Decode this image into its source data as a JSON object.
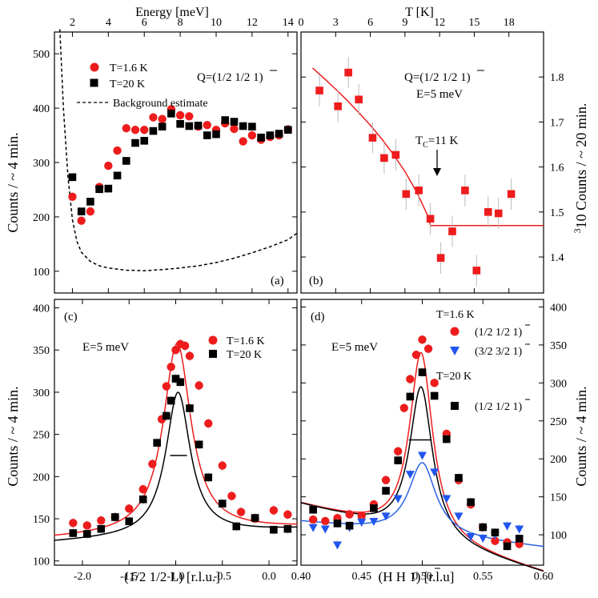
{
  "chart_data": [
    {
      "id": "a",
      "type": "scatter",
      "panel_label": "(a)",
      "xlabel": "Energy [meV]",
      "ylabel": "Counts / ~ 4 min.",
      "xlim": [
        1.0,
        14.5
      ],
      "ylim": [
        60,
        540
      ],
      "xticks": [
        2,
        4,
        6,
        8,
        10,
        12,
        14
      ],
      "yticks": [
        100,
        200,
        300,
        400,
        500
      ],
      "annotation": "Q=(1/2 1/2 1)",
      "legend": [
        "T=1.6 K",
        "T=20 K",
        "Background estimate"
      ],
      "series": [
        {
          "name": "T=1.6 K",
          "color": "#ee1c1c",
          "marker": "circle",
          "x": [
            2.0,
            2.5,
            3.0,
            3.5,
            4.0,
            4.5,
            5.0,
            5.5,
            6.0,
            6.5,
            7.0,
            7.5,
            8.0,
            8.5,
            9.0,
            9.5,
            10.0,
            10.5,
            11.0,
            11.5,
            12.0,
            12.5,
            13.0,
            13.5,
            14.0
          ],
          "y": [
            237,
            193,
            210,
            255,
            294,
            322,
            363,
            360,
            360,
            383,
            380,
            398,
            387,
            385,
            366,
            369,
            360,
            372,
            362,
            339,
            350,
            342,
            347,
            350,
            361
          ]
        },
        {
          "name": "T=20 K",
          "color": "#000000",
          "marker": "square",
          "x": [
            2.0,
            2.5,
            3.0,
            3.5,
            4.0,
            4.5,
            5.0,
            5.5,
            6.0,
            6.5,
            7.0,
            7.5,
            8.0,
            8.5,
            9.0,
            9.5,
            10.0,
            10.5,
            11.0,
            11.5,
            12.0,
            12.5,
            13.0,
            13.5,
            14.0
          ],
          "y": [
            273,
            210,
            228,
            251,
            252,
            276,
            303,
            336,
            340,
            358,
            366,
            390,
            371,
            367,
            368,
            350,
            352,
            378,
            375,
            367,
            366,
            346,
            350,
            353,
            360
          ]
        },
        {
          "name": "Background estimate",
          "color": "#000000",
          "style": "dashed",
          "x": [
            1.3,
            1.5,
            1.75,
            2.0,
            2.25,
            2.5,
            3.0,
            3.5,
            4.0,
            5.0,
            6.0,
            7.0,
            8.0,
            9.0,
            10.0,
            11.0,
            12.0,
            13.0,
            14.0,
            14.5
          ],
          "y": [
            545,
            400,
            275,
            195,
            155,
            135,
            118,
            110,
            106,
            102,
            101,
            103,
            106,
            110,
            116,
            124,
            134,
            145,
            158,
            170
          ]
        }
      ]
    },
    {
      "id": "b",
      "type": "scatter",
      "panel_label": "(b)",
      "xlabel": "T [K]",
      "ylabel": "10 Counts / ~ 20 min.",
      "ylabel_sup": "3",
      "xlim": [
        0,
        21
      ],
      "ylim": [
        1.32,
        1.9
      ],
      "xticks": [
        0,
        3,
        6,
        9,
        12,
        15,
        18
      ],
      "yticks": [
        1.4,
        1.5,
        1.6,
        1.7,
        1.8
      ],
      "ytick_labels": [
        "1.4",
        "1.5",
        "1.6",
        "1.7",
        "1.8"
      ],
      "annotation": "Q=(1/2 1/2 1)",
      "annotation2": "E=5 meV",
      "tc_label": "T",
      "tc_sub": "C",
      "tc_value": "=11 K",
      "series": [
        {
          "name": "data",
          "color": "#ee1c1c",
          "marker": "square",
          "x": [
            1.6,
            3.2,
            4.1,
            5.0,
            6.2,
            7.2,
            8.2,
            9.1,
            10.2,
            11.2,
            12.1,
            13.1,
            14.2,
            15.2,
            16.2,
            17.1,
            18.2
          ],
          "y": [
            1.77,
            1.735,
            1.81,
            1.75,
            1.665,
            1.62,
            1.627,
            1.54,
            1.548,
            1.485,
            1.398,
            1.457,
            1.548,
            1.37,
            1.5,
            1.497,
            1.54
          ],
          "err": [
            0.035,
            0.035,
            0.035,
            0.035,
            0.035,
            0.035,
            0.035,
            0.035,
            0.035,
            0.035,
            0.035,
            0.035,
            0.035,
            0.035,
            0.035,
            0.035,
            0.035
          ]
        },
        {
          "name": "fit",
          "color": "#ee1c1c",
          "style": "line",
          "x": [
            1.0,
            2.0,
            3.0,
            4.0,
            5.0,
            6.0,
            7.0,
            8.0,
            9.0,
            10.0,
            10.5,
            11.0,
            11.2,
            12.0,
            14.0,
            16.0,
            18.0,
            21.0
          ],
          "y": [
            1.82,
            1.797,
            1.773,
            1.748,
            1.721,
            1.693,
            1.662,
            1.628,
            1.59,
            1.545,
            1.518,
            1.49,
            1.47,
            1.47,
            1.47,
            1.47,
            1.47,
            1.47
          ]
        }
      ]
    },
    {
      "id": "c",
      "type": "scatter",
      "panel_label": "(c)",
      "xlabel": "(1/2 1/2 L) [r.l.u.]",
      "ylabel": "Counts / ~ 4 min.",
      "xlim": [
        -2.3,
        0.3
      ],
      "ylim": [
        95,
        410
      ],
      "xticks": [
        -2.0,
        -1.5,
        -1.0,
        -0.5,
        0.0
      ],
      "xtick_labels": [
        "-2.0",
        "-1.5",
        "-1.0",
        "-0.5",
        "0.0"
      ],
      "yticks": [
        100,
        150,
        200,
        250,
        300,
        350,
        400
      ],
      "annotation": "E=5 meV",
      "legend": [
        "T=1.6 K",
        "T=20 K"
      ],
      "resolution_bar": {
        "x": [
          -1.06,
          -0.88
        ],
        "y": 225
      },
      "series": [
        {
          "name": "T=1.6 K",
          "color": "#ee1c1c",
          "marker": "circle",
          "x": [
            -2.1,
            -1.95,
            -1.8,
            -1.65,
            -1.5,
            -1.35,
            -1.25,
            -1.15,
            -1.1,
            -1.05,
            -1.0,
            -0.95,
            -0.9,
            -0.85,
            -0.75,
            -0.65,
            -0.5,
            -0.4,
            -0.3,
            -0.15,
            0.05,
            0.2
          ],
          "y": [
            145,
            142,
            148,
            152,
            162,
            185,
            215,
            268,
            307,
            330,
            350,
            357,
            355,
            343,
            308,
            263,
            213,
            177,
            158,
            150,
            160,
            155
          ]
        },
        {
          "name": "T=20 K",
          "color": "#000000",
          "marker": "square",
          "x": [
            -2.1,
            -1.95,
            -1.8,
            -1.65,
            -1.5,
            -1.35,
            -1.2,
            -1.1,
            -1.05,
            -1.0,
            -0.95,
            -0.85,
            -0.75,
            -0.65,
            -0.5,
            -0.35,
            -0.15,
            0.05,
            0.2
          ],
          "y": [
            133,
            132,
            138,
            152,
            147,
            173,
            240,
            272,
            290,
            316,
            312,
            281,
            238,
            199,
            168,
            141,
            151,
            137,
            138
          ]
        },
        {
          "name": "fit 1.6 K",
          "color": "#ee1c1c",
          "style": "line",
          "fit": "lorentz",
          "x0": -0.985,
          "amp": 225,
          "hwhm": 0.18,
          "base": 133,
          "slope": 5
        },
        {
          "name": "fit 20 K",
          "color": "#000000",
          "style": "line",
          "fit": "lorentz",
          "x0": -0.975,
          "amp": 170,
          "hwhm": 0.16,
          "base": 130,
          "slope": 6
        }
      ]
    },
    {
      "id": "d",
      "type": "scatter",
      "panel_label": "(d)",
      "xlabel": "(H H 1) [r.l.u]",
      "ylabel": "Counts / ~ 4 min.",
      "xlim": [
        0.4,
        0.6
      ],
      "ylim": [
        60,
        410
      ],
      "xticks": [
        0.4,
        0.45,
        0.5,
        0.55,
        0.6
      ],
      "xtick_labels": [
        "0.40",
        "0.45",
        "0.50",
        "0.55",
        "0.60"
      ],
      "yticks": [
        100,
        150,
        200,
        250,
        300,
        350,
        400
      ],
      "annotation": "E=5 meV",
      "legend_header_1": "T=1.6 K",
      "legend_header_2": "T=20 K",
      "legend": [
        "(1/2 1/2 1)",
        "(3/2 3/2 1)",
        "(1/2 1/2 1)"
      ],
      "resolution_bar": {
        "x": [
          0.489,
          0.507
        ],
        "y": 225
      },
      "series": [
        {
          "name": "T=1.6 K (1/2 1/2 1)",
          "color": "#ee1c1c",
          "marker": "circle",
          "x": [
            0.41,
            0.42,
            0.43,
            0.44,
            0.45,
            0.46,
            0.47,
            0.48,
            0.485,
            0.49,
            0.495,
            0.5,
            0.505,
            0.51,
            0.52,
            0.53,
            0.54,
            0.55,
            0.56,
            0.57,
            0.58
          ],
          "y": [
            120,
            118,
            122,
            127,
            125,
            140,
            172,
            210,
            267,
            305,
            337,
            357,
            345,
            300,
            233,
            172,
            140,
            110,
            92,
            90,
            88
          ]
        },
        {
          "name": "T=1.6 K (3/2 3/2 1)",
          "color": "#2255ee",
          "marker": "triangle-down",
          "x": [
            0.41,
            0.42,
            0.43,
            0.44,
            0.45,
            0.46,
            0.47,
            0.48,
            0.49,
            0.5,
            0.51,
            0.52,
            0.53,
            0.54,
            0.55,
            0.56,
            0.57,
            0.58
          ],
          "y": [
            110,
            108,
            87,
            110,
            117,
            118,
            125,
            148,
            180,
            205,
            183,
            148,
            125,
            98,
            96,
            100,
            112,
            108
          ]
        },
        {
          "name": "T=20 K (1/2 1/2 1)",
          "color": "#000000",
          "marker": "square",
          "x": [
            0.41,
            0.43,
            0.44,
            0.46,
            0.47,
            0.48,
            0.49,
            0.5,
            0.51,
            0.52,
            0.53,
            0.54,
            0.55,
            0.56,
            0.57,
            0.58
          ],
          "y": [
            133,
            115,
            112,
            135,
            158,
            198,
            282,
            314,
            283,
            226,
            175,
            143,
            110,
            103,
            85,
            95
          ]
        },
        {
          "name": "fit red",
          "color": "#ee1c1c",
          "style": "line",
          "fit": "lorentz",
          "x0": 0.499,
          "amp": 245,
          "hwhm": 0.0115,
          "base": 95,
          "slope": -450
        },
        {
          "name": "fit black",
          "color": "#000000",
          "style": "line",
          "fit": "lorentz",
          "x0": 0.499,
          "amp": 200,
          "hwhm": 0.0115,
          "base": 95,
          "slope": -450
        },
        {
          "name": "fit blue",
          "color": "#2a63e6",
          "style": "line",
          "fit": "lorentz",
          "x0": 0.5,
          "amp": 95,
          "hwhm": 0.0135,
          "base": 100,
          "slope": -170
        }
      ]
    }
  ]
}
